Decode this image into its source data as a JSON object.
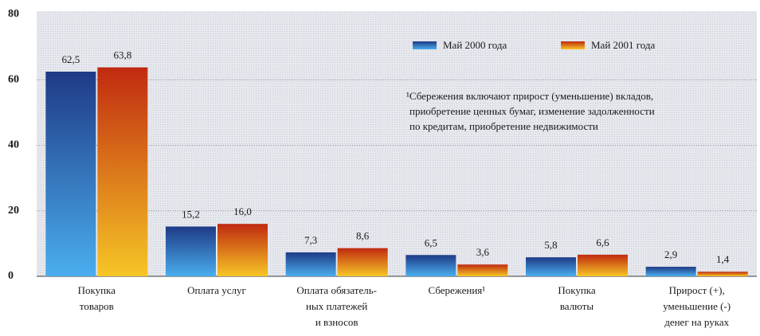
{
  "chart_data": {
    "type": "bar",
    "categories": [
      [
        "Покупка",
        "товаров"
      ],
      [
        "Оплата услуг"
      ],
      [
        "Оплата обязатель-",
        "ных платежей",
        "и взносов"
      ],
      [
        "Сбережения¹"
      ],
      [
        "Покупка",
        "валюты"
      ],
      [
        "Прирост (+),",
        "уменьшение (-)",
        "денег на руках"
      ]
    ],
    "series": [
      {
        "name": "Май 2000 года",
        "colors": [
          "#1e3a86",
          "#4aaeee"
        ],
        "values": [
          62.5,
          15.2,
          7.3,
          6.5,
          5.8,
          2.9
        ],
        "value_labels": [
          "62,5",
          "15,2",
          "7,3",
          "6,5",
          "5,8",
          "2,9"
        ]
      },
      {
        "name": "Май 2001 года",
        "colors": [
          "#c02a10",
          "#f6c626"
        ],
        "values": [
          63.8,
          16.0,
          8.6,
          3.6,
          6.6,
          1.4
        ],
        "value_labels": [
          "63,8",
          "16,0",
          "8,6",
          "3,6",
          "6,6",
          "1,4"
        ]
      }
    ],
    "ylim": [
      0,
      80
    ],
    "yticks": [
      0,
      20,
      40,
      60,
      80
    ],
    "grid": true,
    "note": [
      "¹Сбережения включают прирост (уменьшение) вкладов,",
      "приобретение ценных бумаг, изменение задолженности",
      "по кредитам, приобретение недвижимости"
    ]
  }
}
